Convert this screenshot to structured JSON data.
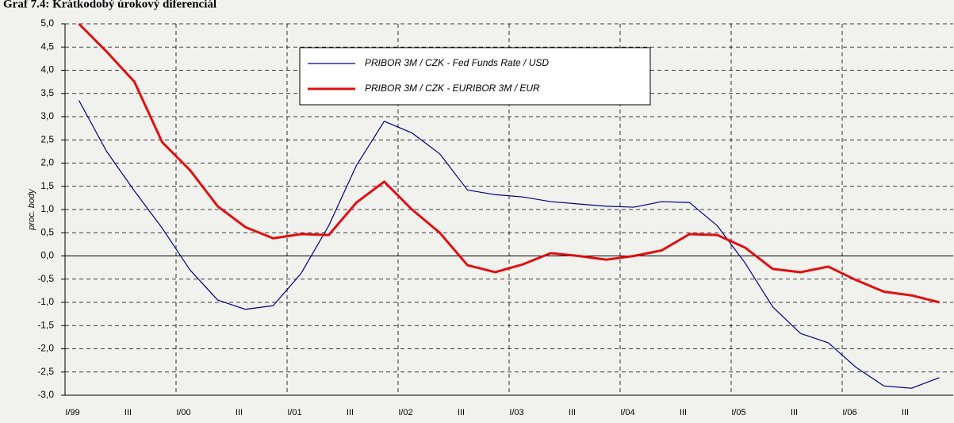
{
  "chart_data": {
    "type": "line",
    "title": "Graf 7.4: Krátkodobý úrokový diferenciál",
    "ylabel": "proc. body",
    "categories": [
      "I/99",
      null,
      "III",
      null,
      "I/00",
      null,
      "III",
      null,
      "I/01",
      null,
      "III",
      null,
      "I/02",
      null,
      "III",
      null,
      "I/03",
      null,
      "III",
      null,
      "I/04",
      null,
      "III",
      null,
      "I/05",
      null,
      "III",
      null,
      "I/06",
      null,
      "III",
      null
    ],
    "series": [
      {
        "name": "PRIBOR 3M / CZK - Fed Funds Rate / USD",
        "color": "#000080",
        "values": [
          3.35,
          2.25,
          1.4,
          0.6,
          -0.3,
          -0.95,
          -1.15,
          -1.07,
          -0.38,
          0.65,
          1.95,
          2.9,
          2.65,
          2.2,
          1.42,
          1.32,
          1.27,
          1.17,
          1.12,
          1.07,
          1.05,
          1.17,
          1.15,
          0.65,
          -0.15,
          -1.1,
          -1.67,
          -1.87,
          -2.4,
          -2.8,
          -2.85,
          -2.62
        ]
      },
      {
        "name": "PRIBOR 3M / CZK - EURIBOR 3M / EUR",
        "color": "#e01010",
        "values": [
          5.0,
          4.4,
          3.75,
          2.45,
          1.85,
          1.07,
          0.62,
          0.38,
          0.47,
          0.45,
          1.15,
          1.6,
          1.0,
          0.5,
          -0.2,
          -0.35,
          -0.18,
          0.06,
          0.0,
          -0.08,
          0.0,
          0.12,
          0.47,
          0.45,
          0.18,
          -0.28,
          -0.35,
          -0.23,
          -0.52,
          -0.77,
          -0.85,
          -1.0
        ]
      }
    ],
    "ylim": [
      -3,
      5
    ],
    "yticks": [
      {
        "value": -3,
        "label": "-3,0"
      },
      {
        "value": -2.5,
        "label": "-2,5"
      },
      {
        "value": -2,
        "label": "-2,0"
      },
      {
        "value": -1.5,
        "label": "-1,5"
      },
      {
        "value": -1,
        "label": "-1,0"
      },
      {
        "value": -0.5,
        "label": "-0,5"
      },
      {
        "value": 0,
        "label": "0,0"
      },
      {
        "value": 0.5,
        "label": "0,5"
      },
      {
        "value": 1,
        "label": "1,0"
      },
      {
        "value": 1.5,
        "label": "1,5"
      },
      {
        "value": 2,
        "label": "2,0"
      },
      {
        "value": 2.5,
        "label": "2,5"
      },
      {
        "value": 3,
        "label": "3,0"
      },
      {
        "value": 3.5,
        "label": "3,5"
      },
      {
        "value": 4,
        "label": "4,0"
      },
      {
        "value": 4.5,
        "label": "4,5"
      },
      {
        "value": 5,
        "label": "5,0"
      }
    ],
    "grid": true
  }
}
